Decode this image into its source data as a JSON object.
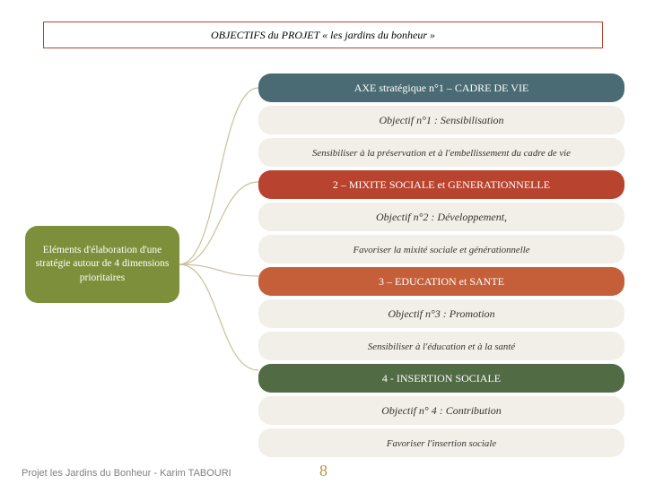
{
  "title": "OBJECTIFS du PROJET « les jardins du bonheur »",
  "title_border_color": "#b8432e",
  "source": {
    "text": "Eléments d'élaboration d'une stratégie autour de 4 dimensions prioritaires",
    "bg": "#7d8f3a"
  },
  "axes": [
    {
      "header": "AXE stratégique n°1 – CADRE DE VIE",
      "header_bg": "#4a6b73",
      "objectif": "Objectif n°1 : Sensibilisation",
      "desc": "Sensibiliser à la préservation et à l'embellissement du cadre de vie"
    },
    {
      "header": "2 – MIXITE SOCIALE et GENERATIONNELLE",
      "header_bg": "#b8432e",
      "objectif": "Objectif n°2 : Développement,",
      "desc": "Favoriser la mixité sociale et générationnelle"
    },
    {
      "header": "3 – EDUCATION et SANTE",
      "header_bg": "#c55f3a",
      "objectif": "Objectif n°3 : Promotion",
      "desc": "Sensibiliser à l'éducation et à la santé"
    },
    {
      "header": "4 - INSERTION SOCIALE",
      "header_bg": "#516b45",
      "objectif": "Objectif n° 4 : Contribution",
      "desc": "Favoriser l'insertion sociale"
    }
  ],
  "obj_bg": "#f1efe7",
  "obj_text_color": "#333333",
  "footer": {
    "text": "Projet les Jardins du Bonheur - Karim TABOURI",
    "color": "#808080"
  },
  "page_number": "8",
  "page_number_color": "#c18f42",
  "connector_color": "#c8c19a",
  "connector": {
    "srcX": 200,
    "srcY": 295,
    "targetsY": [
      98,
      203,
      308,
      413
    ],
    "dstX": 288
  }
}
